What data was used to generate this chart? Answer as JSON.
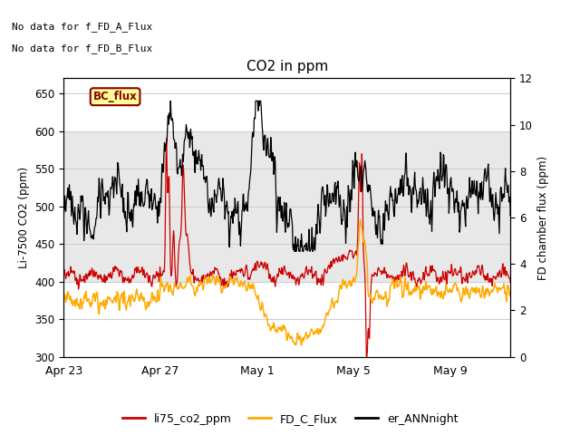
{
  "title": "CO2 in ppm",
  "ylabel_left": "Li-7500 CO2 (ppm)",
  "ylabel_right": "FD chamber flux (ppm)",
  "ylim_left": [
    300,
    670
  ],
  "ylim_right": [
    0,
    12
  ],
  "yticks_left": [
    300,
    350,
    400,
    450,
    500,
    550,
    600,
    650
  ],
  "yticks_right": [
    0,
    2,
    4,
    6,
    8,
    10,
    12
  ],
  "annotation1": "No data for f_FD_A_Flux",
  "annotation2": "No data for f_FD_B_Flux",
  "bc_flux_label": "BC_flux",
  "legend_labels": [
    "li75_co2_ppm",
    "FD_C_Flux",
    "er_ANNnight"
  ],
  "legend_colors": [
    "#cc0000",
    "#ffaa00",
    "#000000"
  ],
  "background_color": "#ffffff",
  "grid_color": "#cccccc",
  "shade_color": "#e8e8e8",
  "shade_ymin": 400,
  "shade_ymax": 600,
  "date_ticks": [
    "Apr 23",
    "Apr 27",
    "May 1",
    "May 5",
    "May 9"
  ],
  "date_tick_positions": [
    0,
    4,
    8,
    12,
    16
  ],
  "xlim": [
    0,
    18.5
  ],
  "figsize": [
    6.4,
    4.8
  ],
  "dpi": 100
}
